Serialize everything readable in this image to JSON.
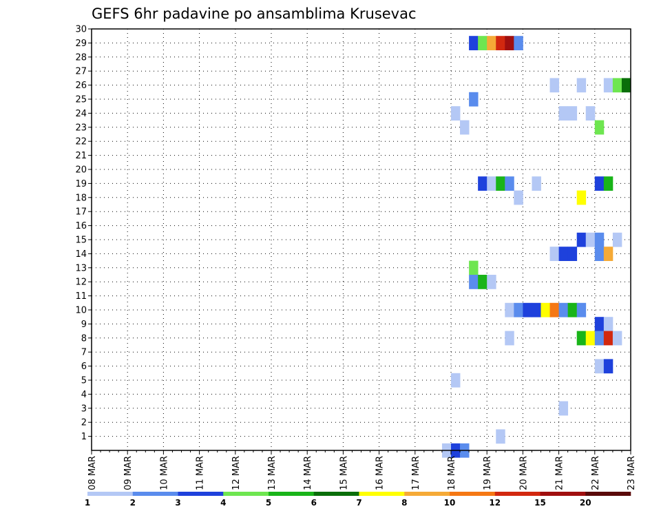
{
  "chart_data": {
    "type": "heatmap",
    "title": "GEFS 6hr padavine po ansamblima Krusevac",
    "x_tick_labels": [
      "08 MAR",
      "09 MAR",
      "10 MAR",
      "11 MAR",
      "12 MAR",
      "13 MAR",
      "14 MAR",
      "15 MAR",
      "16 MAR",
      "17 MAR",
      "18 MAR",
      "19 MAR",
      "20 MAR",
      "21 MAR",
      "22 MAR",
      "23 MAR"
    ],
    "x_range_days": [
      0,
      15
    ],
    "steps_per_day": 4,
    "y_tick_labels": [
      "1",
      "2",
      "3",
      "4",
      "5",
      "6",
      "7",
      "8",
      "9",
      "10",
      "11",
      "12",
      "13",
      "14",
      "15",
      "16",
      "17",
      "18",
      "19",
      "20",
      "21",
      "22",
      "23",
      "24",
      "25",
      "26",
      "27",
      "28",
      "29",
      "30"
    ],
    "y_range": [
      0,
      30
    ],
    "grid": true,
    "legend": {
      "position": "bottom",
      "labels": [
        "1",
        "2",
        "3",
        "4",
        "5",
        "6",
        "7",
        "8",
        "10",
        "12",
        "15",
        "20"
      ],
      "colors": [
        "#b4c8f5",
        "#5a8ced",
        "#1e41dc",
        "#6ee650",
        "#19b419",
        "#0a6e0a",
        "#ffff00",
        "#f5aa37",
        "#f57814",
        "#d2280f",
        "#a00f0f",
        "#5a0a0a"
      ]
    },
    "cells": [
      {
        "member": 29,
        "step": 42,
        "cls": 2
      },
      {
        "member": 29,
        "step": 43,
        "cls": 3
      },
      {
        "member": 29,
        "step": 44,
        "cls": 7
      },
      {
        "member": 29,
        "step": 45,
        "cls": 9
      },
      {
        "member": 29,
        "step": 46,
        "cls": 10
      },
      {
        "member": 29,
        "step": 47,
        "cls": 1
      },
      {
        "member": 26,
        "step": 51,
        "cls": 0
      },
      {
        "member": 26,
        "step": 54,
        "cls": 0
      },
      {
        "member": 26,
        "step": 57,
        "cls": 0
      },
      {
        "member": 26,
        "step": 58,
        "cls": 3
      },
      {
        "member": 26,
        "step": 59,
        "cls": 5
      },
      {
        "member": 25,
        "step": 42,
        "cls": 1
      },
      {
        "member": 24,
        "step": 40,
        "cls": 0
      },
      {
        "member": 24,
        "step": 52,
        "cls": 0
      },
      {
        "member": 24,
        "step": 53,
        "cls": 0
      },
      {
        "member": 24,
        "step": 55,
        "cls": 0
      },
      {
        "member": 23,
        "step": 41,
        "cls": 0
      },
      {
        "member": 23,
        "step": 56,
        "cls": 3
      },
      {
        "member": 19,
        "step": 43,
        "cls": 2
      },
      {
        "member": 19,
        "step": 44,
        "cls": 0
      },
      {
        "member": 19,
        "step": 45,
        "cls": 4
      },
      {
        "member": 19,
        "step": 46,
        "cls": 1
      },
      {
        "member": 19,
        "step": 49,
        "cls": 0
      },
      {
        "member": 19,
        "step": 56,
        "cls": 2
      },
      {
        "member": 19,
        "step": 57,
        "cls": 4
      },
      {
        "member": 18,
        "step": 47,
        "cls": 0
      },
      {
        "member": 18,
        "step": 54,
        "cls": 6
      },
      {
        "member": 15,
        "step": 54,
        "cls": 2
      },
      {
        "member": 15,
        "step": 55,
        "cls": 0
      },
      {
        "member": 15,
        "step": 56,
        "cls": 1
      },
      {
        "member": 15,
        "step": 58,
        "cls": 0
      },
      {
        "member": 14,
        "step": 51,
        "cls": 0
      },
      {
        "member": 14,
        "step": 52,
        "cls": 2
      },
      {
        "member": 14,
        "step": 53,
        "cls": 2
      },
      {
        "member": 14,
        "step": 56,
        "cls": 1
      },
      {
        "member": 14,
        "step": 57,
        "cls": 7
      },
      {
        "member": 13,
        "step": 42,
        "cls": 3
      },
      {
        "member": 12,
        "step": 42,
        "cls": 1
      },
      {
        "member": 12,
        "step": 43,
        "cls": 4
      },
      {
        "member": 12,
        "step": 44,
        "cls": 0
      },
      {
        "member": 10,
        "step": 46,
        "cls": 0
      },
      {
        "member": 10,
        "step": 47,
        "cls": 1
      },
      {
        "member": 10,
        "step": 48,
        "cls": 2
      },
      {
        "member": 10,
        "step": 49,
        "cls": 2
      },
      {
        "member": 10,
        "step": 50,
        "cls": 6
      },
      {
        "member": 10,
        "step": 51,
        "cls": 8
      },
      {
        "member": 10,
        "step": 52,
        "cls": 1
      },
      {
        "member": 10,
        "step": 53,
        "cls": 4
      },
      {
        "member": 10,
        "step": 54,
        "cls": 1
      },
      {
        "member": 9,
        "step": 56,
        "cls": 2
      },
      {
        "member": 9,
        "step": 57,
        "cls": 0
      },
      {
        "member": 8,
        "step": 46,
        "cls": 0
      },
      {
        "member": 8,
        "step": 54,
        "cls": 4
      },
      {
        "member": 8,
        "step": 55,
        "cls": 6
      },
      {
        "member": 8,
        "step": 56,
        "cls": 1
      },
      {
        "member": 8,
        "step": 57,
        "cls": 9
      },
      {
        "member": 8,
        "step": 58,
        "cls": 0
      },
      {
        "member": 6,
        "step": 56,
        "cls": 0
      },
      {
        "member": 6,
        "step": 57,
        "cls": 2
      },
      {
        "member": 5,
        "step": 40,
        "cls": 0
      },
      {
        "member": 3,
        "step": 52,
        "cls": 0
      },
      {
        "member": 1,
        "step": 45,
        "cls": 0
      },
      {
        "member": 0,
        "step": 39,
        "cls": 0
      },
      {
        "member": 0,
        "step": 40,
        "cls": 2
      },
      {
        "member": 0,
        "step": 41,
        "cls": 1
      }
    ]
  }
}
